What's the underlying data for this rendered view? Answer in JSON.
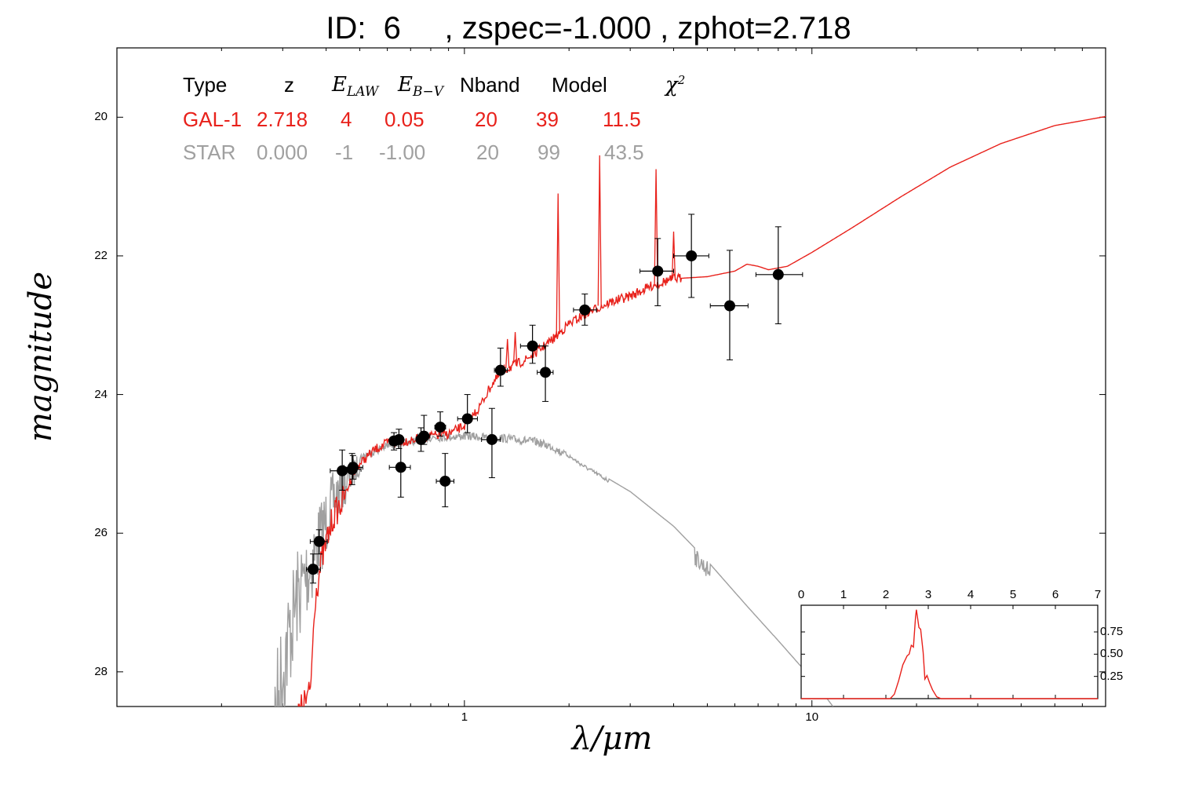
{
  "title": {
    "id_label": "ID:",
    "id_value": "6",
    "text": "ID:  6     , zspec=-1.000 , zphot=2.718"
  },
  "colors": {
    "galaxy": "#e8211b",
    "star": "#a0a0a0",
    "points": "#000000"
  },
  "table": {
    "headers": {
      "type": "Type",
      "z": "z",
      "elaw": "E",
      "elaw_sub": "LAW",
      "ebv": "E",
      "ebv_sub": "B−V",
      "nband": "Nband",
      "model": "Model",
      "chi2": "χ",
      "chi2_sup": "2"
    },
    "rows": [
      {
        "class": "gal",
        "type": "GAL-1",
        "z": "2.718",
        "elaw": "4",
        "ebv": "0.05",
        "nband": "20",
        "model": "39",
        "chi2": "11.5"
      },
      {
        "class": "star",
        "type": "STAR",
        "z": "0.000",
        "elaw": "-1",
        "ebv": "-1.00",
        "nband": "20",
        "model": "99",
        "chi2": "43.5"
      }
    ]
  },
  "chart_data": [
    {
      "type": "scatter",
      "xlabel": "λ/μm",
      "ylabel": "magnitude",
      "xscale": "log",
      "xlim": [
        0.1,
        70
      ],
      "ylim": [
        28.5,
        19.0
      ],
      "xticks": [
        1,
        10
      ],
      "xtick_labels": [
        "1",
        "10"
      ],
      "yticks": [
        20,
        22,
        24,
        26,
        28
      ],
      "ytick_labels": [
        "20",
        "22",
        "24",
        "26",
        "28"
      ],
      "points": [
        {
          "x": 0.367,
          "y": 26.52,
          "xerr": [
            0.351,
            0.385
          ],
          "yerr": [
            26.3,
            26.72
          ]
        },
        {
          "x": 0.382,
          "y": 26.12,
          "xerr": [
            0.36,
            0.403
          ],
          "yerr": [
            25.95,
            26.3
          ]
        },
        {
          "x": 0.445,
          "y": 25.1,
          "xerr": [
            0.411,
            0.478
          ],
          "yerr": [
            24.8,
            25.38
          ]
        },
        {
          "x": 0.475,
          "y": 25.08,
          "xerr": [
            0.442,
            0.504
          ],
          "yerr": [
            24.85,
            25.3
          ]
        },
        {
          "x": 0.478,
          "y": 25.05,
          "xerr": [
            0.45,
            0.51
          ],
          "yerr": [
            24.88,
            25.22
          ]
        },
        {
          "x": 0.627,
          "y": 24.67,
          "xerr": [
            0.611,
            0.645
          ],
          "yerr": [
            24.55,
            24.8
          ]
        },
        {
          "x": 0.648,
          "y": 24.65,
          "xerr": [
            0.631,
            0.665
          ],
          "yerr": [
            24.5,
            24.78
          ]
        },
        {
          "x": 0.656,
          "y": 25.05,
          "xerr": [
            0.608,
            0.699
          ],
          "yerr": [
            24.63,
            25.48
          ]
        },
        {
          "x": 0.75,
          "y": 24.65,
          "xerr": [
            0.735,
            0.765
          ],
          "yerr": [
            24.48,
            24.82
          ]
        },
        {
          "x": 0.765,
          "y": 24.6,
          "xerr": [
            0.735,
            0.796
          ],
          "yerr": [
            24.3,
            24.72
          ]
        },
        {
          "x": 0.852,
          "y": 24.47,
          "xerr": [
            0.822,
            0.883
          ],
          "yerr": [
            24.25,
            24.6
          ]
        },
        {
          "x": 0.88,
          "y": 25.25,
          "xerr": [
            0.83,
            0.933
          ],
          "yerr": [
            24.85,
            25.62
          ]
        },
        {
          "x": 1.02,
          "y": 24.35,
          "xerr": [
            0.956,
            1.09
          ],
          "yerr": [
            24.0,
            24.55
          ]
        },
        {
          "x": 1.2,
          "y": 24.65,
          "xerr": [
            1.12,
            1.27
          ],
          "yerr": [
            24.2,
            25.2
          ]
        },
        {
          "x": 1.27,
          "y": 23.65,
          "xerr": [
            1.22,
            1.33
          ],
          "yerr": [
            23.33,
            23.88
          ]
        },
        {
          "x": 1.57,
          "y": 23.3,
          "xerr": [
            1.45,
            1.7
          ],
          "yerr": [
            23.0,
            23.55
          ]
        },
        {
          "x": 1.71,
          "y": 23.68,
          "xerr": [
            1.62,
            1.8
          ],
          "yerr": [
            23.3,
            24.1
          ]
        },
        {
          "x": 2.22,
          "y": 22.78,
          "xerr": [
            2.06,
            2.4
          ],
          "yerr": [
            22.55,
            23.0
          ]
        },
        {
          "x": 3.6,
          "y": 22.22,
          "xerr": [
            3.2,
            4.0
          ],
          "yerr": [
            21.75,
            22.72
          ]
        },
        {
          "x": 4.5,
          "y": 22.0,
          "xerr": [
            4.0,
            5.05
          ],
          "yerr": [
            21.4,
            22.6
          ]
        },
        {
          "x": 5.8,
          "y": 22.72,
          "xerr": [
            5.1,
            6.55
          ],
          "yerr": [
            21.92,
            23.5
          ]
        },
        {
          "x": 8.0,
          "y": 22.27,
          "xerr": [
            6.9,
            9.4
          ],
          "yerr": [
            21.58,
            22.98
          ]
        }
      ],
      "galaxy_sed": [
        [
          0.3,
          29.0
        ],
        [
          0.36,
          28.3
        ],
        [
          0.372,
          26.9
        ],
        [
          0.39,
          26.35
        ],
        [
          0.42,
          25.75
        ],
        [
          0.45,
          25.5
        ],
        [
          0.48,
          25.12
        ],
        [
          0.5,
          25.0
        ],
        [
          0.55,
          24.8
        ],
        [
          0.6,
          24.7
        ],
        [
          0.7,
          24.66
        ],
        [
          0.8,
          24.6
        ],
        [
          0.9,
          24.57
        ],
        [
          1.0,
          24.45
        ],
        [
          1.1,
          24.2
        ],
        [
          1.2,
          23.85
        ],
        [
          1.3,
          23.65
        ],
        [
          1.5,
          23.5
        ],
        [
          1.65,
          23.35
        ],
        [
          1.8,
          23.2
        ],
        [
          2.0,
          22.98
        ],
        [
          2.3,
          22.8
        ],
        [
          2.6,
          22.68
        ],
        [
          3.0,
          22.58
        ],
        [
          3.5,
          22.42
        ],
        [
          4.0,
          22.33
        ],
        [
          5.0,
          22.3
        ],
        [
          6.0,
          22.22
        ],
        [
          6.5,
          22.12
        ],
        [
          7.0,
          22.15
        ],
        [
          7.5,
          22.2
        ],
        [
          8.5,
          22.15
        ],
        [
          10.0,
          21.95
        ],
        [
          13.0,
          21.6
        ],
        [
          18.0,
          21.15
        ],
        [
          25.0,
          20.72
        ],
        [
          35.0,
          20.38
        ],
        [
          50.0,
          20.12
        ],
        [
          70.0,
          19.99
        ]
      ],
      "galaxy_lines": [
        {
          "x": 1.86,
          "top": 21.1,
          "base": 23.1
        },
        {
          "x": 2.45,
          "top": 20.55,
          "base": 22.72
        },
        {
          "x": 3.56,
          "top": 20.75,
          "base": 22.42
        },
        {
          "x": 4.0,
          "top": 21.65,
          "base": 22.35
        },
        {
          "x": 1.33,
          "top": 23.2,
          "base": 23.62
        },
        {
          "x": 1.4,
          "top": 23.1,
          "base": 23.55
        }
      ],
      "star_sed": [
        [
          0.27,
          28.5
        ],
        [
          0.3,
          27.1
        ],
        [
          0.33,
          26.2
        ],
        [
          0.37,
          25.7
        ],
        [
          0.42,
          25.1
        ],
        [
          0.5,
          24.85
        ],
        [
          0.6,
          24.68
        ],
        [
          0.8,
          24.56
        ],
        [
          1.0,
          24.54
        ],
        [
          1.3,
          24.57
        ],
        [
          1.6,
          24.62
        ],
        [
          1.8,
          24.7
        ],
        [
          2.2,
          25.0
        ],
        [
          3.0,
          25.4
        ],
        [
          4.0,
          25.9
        ],
        [
          5.0,
          26.4
        ],
        [
          6.5,
          27.05
        ],
        [
          8.0,
          27.55
        ],
        [
          10.0,
          28.1
        ],
        [
          11.5,
          28.5
        ]
      ]
    },
    {
      "type": "line",
      "xlim": [
        0,
        7
      ],
      "ylim": [
        0,
        1.05
      ],
      "xticks": [
        0,
        1,
        2,
        3,
        4,
        5,
        6,
        7
      ],
      "xtick_labels": [
        "0",
        "1",
        "2",
        "3",
        "4",
        "5",
        "6",
        "7"
      ],
      "yticks": [
        0.25,
        0.5,
        0.75
      ],
      "ytick_labels": [
        "0.25",
        "0.50",
        "0.75"
      ],
      "pdz": [
        [
          0,
          0
        ],
        [
          2.1,
          0
        ],
        [
          2.2,
          0.05
        ],
        [
          2.3,
          0.2
        ],
        [
          2.4,
          0.38
        ],
        [
          2.5,
          0.48
        ],
        [
          2.55,
          0.5
        ],
        [
          2.6,
          0.6
        ],
        [
          2.65,
          0.58
        ],
        [
          2.7,
          0.92
        ],
        [
          2.72,
          1.0
        ],
        [
          2.78,
          0.8
        ],
        [
          2.82,
          0.78
        ],
        [
          2.88,
          0.52
        ],
        [
          2.92,
          0.22
        ],
        [
          2.97,
          0.26
        ],
        [
          3.03,
          0.18
        ],
        [
          3.1,
          0.1
        ],
        [
          3.2,
          0.02
        ],
        [
          3.3,
          0
        ],
        [
          7,
          0
        ]
      ]
    }
  ]
}
